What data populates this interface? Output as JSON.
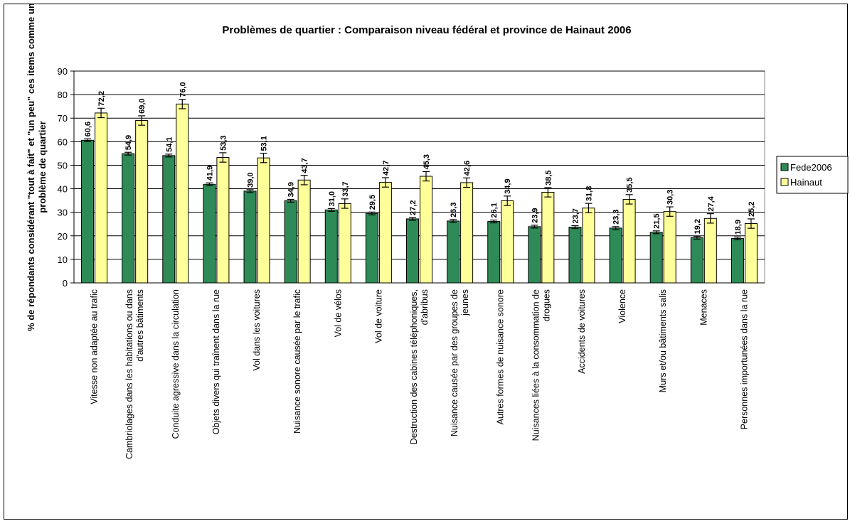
{
  "chart_data": {
    "type": "bar",
    "title": "Problèmes de quartier : Comparaison niveau fédéral et province de Hainaut 2006",
    "ylabel": "% de répondants considérant \"tout à fait\" et \"un peu\" ces items comme un problème de quartier",
    "ylim": [
      0,
      90
    ],
    "yticks": [
      0,
      10,
      20,
      30,
      40,
      50,
      60,
      70,
      80,
      90
    ],
    "grid": true,
    "legend_position": "right",
    "error_bars": true,
    "categories": [
      [
        "Vitesse non adaptée au trafic"
      ],
      [
        "Cambriolages dans les habitations ou dans",
        "d'autres bâtiments"
      ],
      [
        "Conduite agressive dans la circulation"
      ],
      [
        "Objets divers qui traînent dans la rue"
      ],
      [
        "Vol dans les voitures"
      ],
      [
        "Nuisance sonore causée par le trafic"
      ],
      [
        "Vol de vélos"
      ],
      [
        "Vol de voiture"
      ],
      [
        "Destruction des cabines téléphoniques,",
        "d'abribus"
      ],
      [
        "Nuisance causée par des groupes de",
        "jeunes"
      ],
      [
        "Autres formes de nuisance sonore"
      ],
      [
        "Nuisances liées à la consommation de",
        "drogues"
      ],
      [
        "Accidents de voitures"
      ],
      [
        "Violence"
      ],
      [
        "Murs et/ou bâtiments salis"
      ],
      [
        "Menaces"
      ],
      [
        "Personnes importunées dans la rue"
      ]
    ],
    "series": [
      {
        "name": "Fede2006",
        "color": "#2e8b57",
        "values": [
          60.6,
          54.9,
          54.1,
          41.9,
          39.0,
          34.9,
          31.0,
          29.5,
          27.2,
          26.3,
          26.1,
          23.9,
          23.7,
          23.3,
          21.5,
          19.2,
          18.9
        ],
        "labels": [
          "60,6",
          "54,9",
          "54,1",
          "41,9",
          "39,0",
          "34,9",
          "31,0",
          "29,5",
          "27,2",
          "26,3",
          "26,1",
          "23,9",
          "23,7",
          "23,3",
          "21,5",
          "19,2",
          "18,9"
        ],
        "error": [
          0.6,
          0.6,
          0.6,
          0.6,
          0.6,
          0.6,
          0.6,
          0.6,
          0.6,
          0.6,
          0.6,
          0.6,
          0.6,
          0.6,
          0.6,
          0.6,
          0.6
        ]
      },
      {
        "name": "Hainaut",
        "color": "#ffff99",
        "values": [
          72.2,
          69.0,
          76.0,
          53.3,
          53.1,
          43.7,
          33.7,
          42.7,
          45.3,
          42.6,
          34.9,
          38.5,
          31.8,
          35.5,
          30.3,
          27.4,
          25.2
        ],
        "labels": [
          "72,2",
          "69,0",
          "76,0",
          "53,3",
          "53,1",
          "43,7",
          "33,7",
          "42,7",
          "45,3",
          "42,6",
          "34,9",
          "38,5",
          "31,8",
          "35,5",
          "30,3",
          "27,4",
          "25,2"
        ],
        "error": [
          2.0,
          2.0,
          2.0,
          2.0,
          2.0,
          2.0,
          2.0,
          2.0,
          2.0,
          2.0,
          2.0,
          2.0,
          2.0,
          2.0,
          2.0,
          2.0,
          2.0
        ]
      }
    ]
  }
}
